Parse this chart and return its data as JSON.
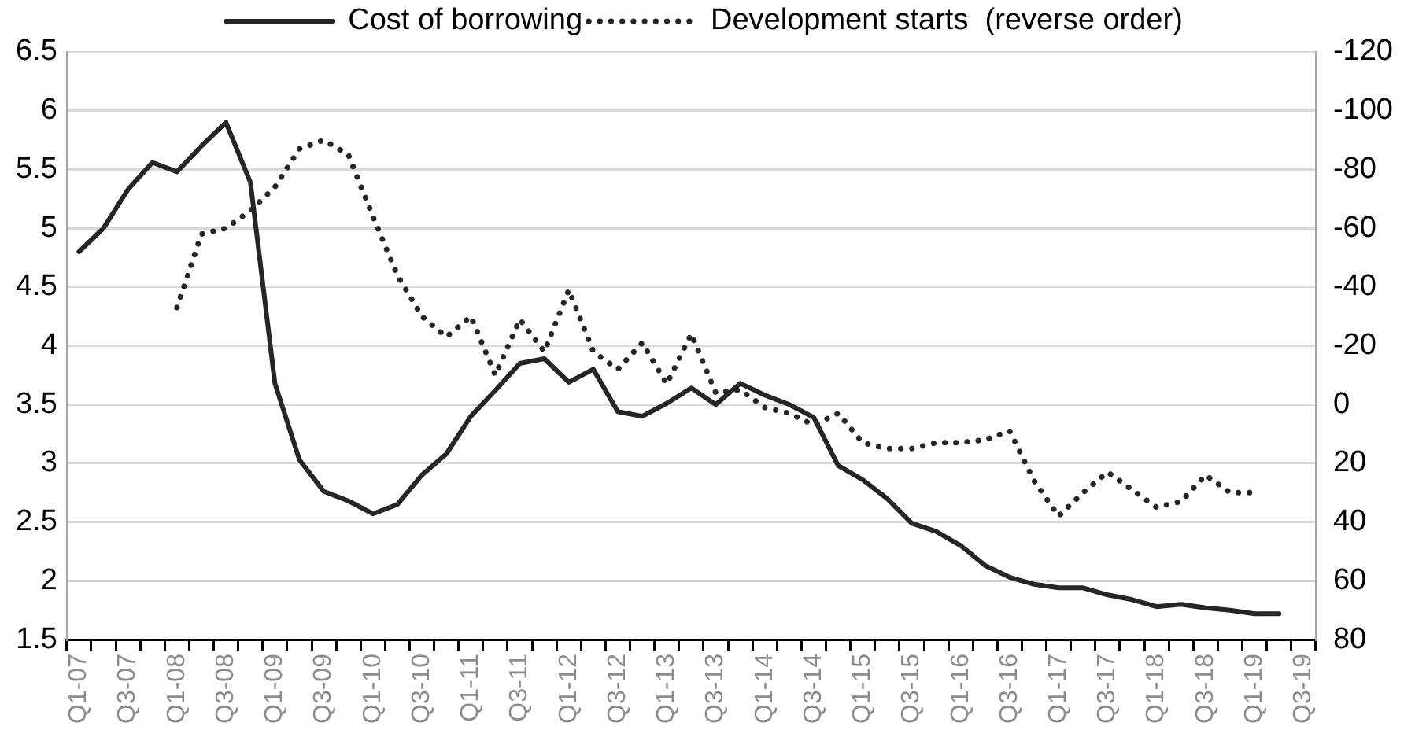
{
  "chart_data": {
    "type": "line",
    "categories": [
      "Q1-07",
      null,
      "Q3-07",
      null,
      "Q1-08",
      null,
      "Q3-08",
      null,
      "Q1-09",
      null,
      "Q3-09",
      null,
      "Q1-10",
      null,
      "Q3-10",
      null,
      "Q1-11",
      null,
      "Q3-11",
      null,
      "Q1-12",
      null,
      "Q3-12",
      null,
      "Q1-13",
      null,
      "Q3-13",
      null,
      "Q1-14",
      null,
      "Q3-14",
      null,
      "Q1-15",
      null,
      "Q3-15",
      null,
      "Q1-16",
      null,
      "Q3-16",
      null,
      "Q1-17",
      null,
      "Q3-17",
      null,
      "Q1-18",
      null,
      "Q3-18",
      null,
      "Q1-19",
      null,
      "Q3-19"
    ],
    "series": [
      {
        "name": "Cost of borrowing",
        "color": "#262626",
        "line_style": "solid",
        "values": [
          4.8,
          5.0,
          5.33,
          5.56,
          5.48,
          5.7,
          5.9,
          5.39,
          3.68,
          3.03,
          2.76,
          2.68,
          2.57,
          2.65,
          2.9,
          3.08,
          3.4,
          3.62,
          3.85,
          3.89,
          3.69,
          3.8,
          3.44,
          3.4,
          3.51,
          3.64,
          3.5,
          3.68,
          3.58,
          3.5,
          3.39,
          2.98,
          2.86,
          2.7,
          2.49,
          2.42,
          2.3,
          2.13,
          2.03,
          1.97,
          1.94,
          1.94,
          1.88,
          1.84,
          1.78,
          1.8,
          1.77,
          1.75,
          1.72,
          1.72,
          null
        ]
      },
      {
        "name": "Development starts  (reverse order)",
        "color": "#262626",
        "line_style": "dotted",
        "axis": "y2",
        "values": [
          null,
          null,
          null,
          null,
          -33,
          -58,
          -60,
          -66,
          -74,
          -87,
          -90,
          -85,
          -64,
          -44,
          -30,
          -23,
          -30,
          -10,
          -29,
          -18,
          -39,
          -18,
          -12,
          -21,
          -7,
          -24,
          -4,
          -5,
          1,
          3,
          7,
          3,
          13,
          15,
          15,
          13,
          13,
          12,
          9,
          26,
          38,
          30,
          23,
          29,
          35,
          33,
          24,
          30,
          30,
          null,
          null
        ]
      }
    ],
    "ylim": [
      1.5,
      6.5
    ],
    "yticks": [
      1.5,
      2,
      2.5,
      3,
      3.5,
      4,
      4.5,
      5,
      5.5,
      6,
      6.5
    ],
    "y2lim": [
      80,
      -120
    ],
    "y2ticks": [
      80,
      60,
      40,
      20,
      0,
      -20,
      -40,
      -60,
      -80,
      -100,
      -120
    ],
    "grid": "y",
    "legend": "top",
    "marker": "none"
  }
}
